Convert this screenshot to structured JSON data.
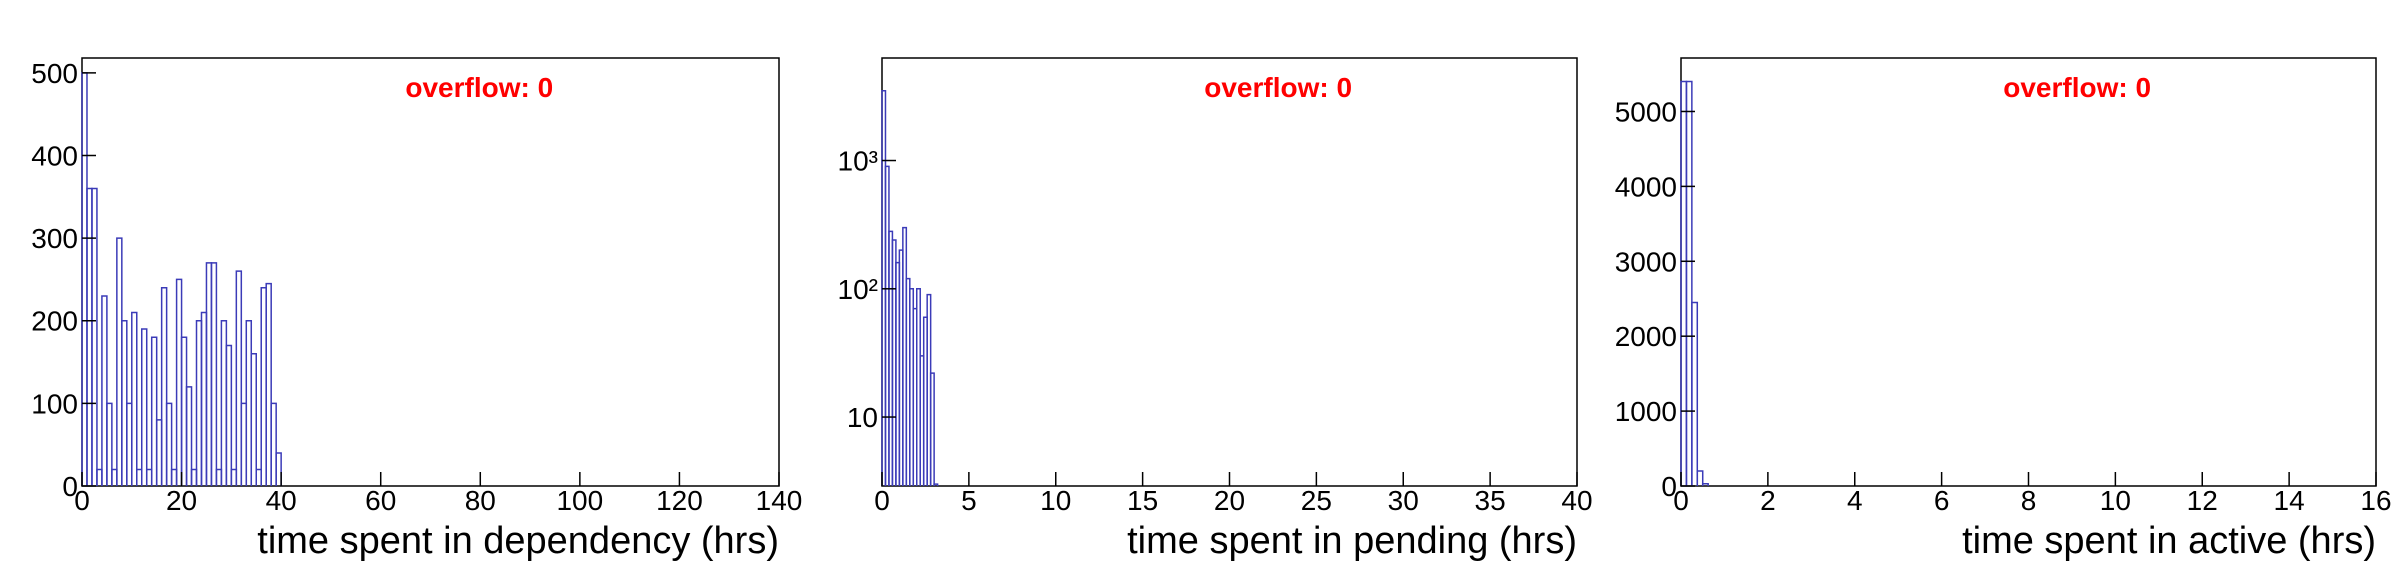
{
  "chart_data": [
    {
      "type": "histogram",
      "xlabel": "time spent in dependency (hrs)",
      "annotation": "overflow: 0",
      "color": "#3b3bb8",
      "log_y": false,
      "bins": [
        0,
        1,
        2,
        3,
        4,
        5,
        6,
        7,
        8,
        9,
        10,
        11,
        12,
        13,
        14,
        15,
        16,
        17,
        18,
        19,
        20,
        21,
        22,
        23,
        24,
        25,
        26,
        27,
        28,
        29,
        30,
        31,
        32,
        33,
        34,
        35,
        36,
        37,
        38,
        39,
        40
      ],
      "counts": [
        500,
        360,
        360,
        20,
        230,
        100,
        20,
        300,
        200,
        100,
        210,
        20,
        190,
        20,
        180,
        80,
        240,
        100,
        20,
        250,
        180,
        120,
        20,
        200,
        210,
        270,
        270,
        20,
        200,
        170,
        20,
        260,
        100,
        200,
        160,
        20,
        240,
        245,
        100,
        40
      ],
      "xlim": [
        0,
        140
      ],
      "xticks": [
        0,
        20,
        40,
        60,
        80,
        100,
        120,
        140
      ],
      "ylim": [
        0,
        518
      ],
      "yticks": [
        0,
        100,
        200,
        300,
        400,
        500
      ]
    },
    {
      "type": "histogram",
      "xlabel": "time spent in pending (hrs)",
      "annotation": "overflow: 0",
      "color": "#3b3bb8",
      "log_y": true,
      "bins": [
        0,
        0.2,
        0.4,
        0.6,
        0.8,
        1,
        1.2,
        1.4,
        1.6,
        1.8,
        2,
        2.2,
        2.4,
        2.6,
        2.8,
        3,
        3.2
      ],
      "counts": [
        3500,
        900,
        280,
        240,
        160,
        200,
        300,
        120,
        100,
        70,
        100,
        30,
        60,
        90,
        22,
        3
      ],
      "xlim": [
        0,
        40
      ],
      "xticks": [
        0,
        5,
        10,
        15,
        20,
        25,
        30,
        35,
        40
      ],
      "ylim": [
        2.9,
        6300
      ],
      "yticks": [
        10,
        {
          "value": 100,
          "label": "10²"
        },
        {
          "value": 1000,
          "label": "10³"
        }
      ]
    },
    {
      "type": "histogram",
      "xlabel": "time spent in active (hrs)",
      "annotation": "overflow: 0",
      "color": "#3b3bb8",
      "log_y": false,
      "bins": [
        0,
        0.125,
        0.25,
        0.375,
        0.5,
        0.625
      ],
      "counts": [
        5400,
        5400,
        2450,
        200,
        30
      ],
      "xlim": [
        0,
        16
      ],
      "xticks": [
        0,
        2,
        4,
        6,
        8,
        10,
        12,
        14,
        16
      ],
      "ylim": [
        0,
        5714
      ],
      "yticks": [
        0,
        1000,
        2000,
        3000,
        4000,
        5000
      ]
    }
  ]
}
